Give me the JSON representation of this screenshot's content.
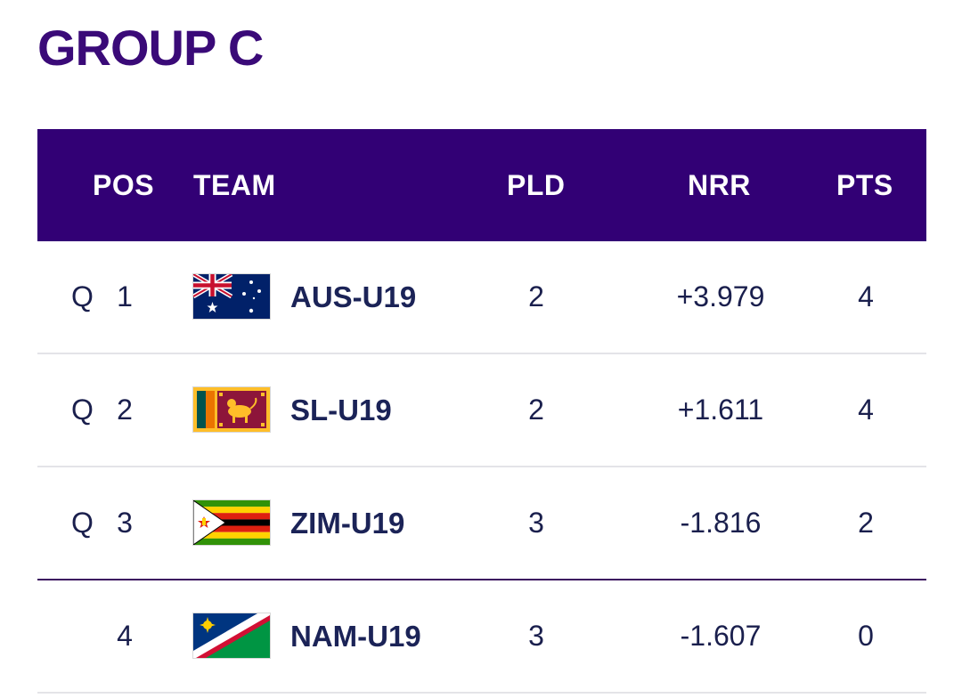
{
  "title": "GROUP C",
  "columns": {
    "pos": "POS",
    "team": "TEAM",
    "pld": "PLD",
    "nrr": "NRR",
    "pts": "PTS"
  },
  "rows": [
    {
      "qualified": "Q",
      "pos": "1",
      "flag": "australia-flag",
      "team": "AUS-U19",
      "pld": "2",
      "nrr": "+3.979",
      "pts": "4"
    },
    {
      "qualified": "Q",
      "pos": "2",
      "flag": "sri-lanka-flag",
      "team": "SL-U19",
      "pld": "2",
      "nrr": "+1.611",
      "pts": "4"
    },
    {
      "qualified": "Q",
      "pos": "3",
      "flag": "zimbabwe-flag",
      "team": "ZIM-U19",
      "pld": "3",
      "nrr": "-1.816",
      "pts": "2"
    },
    {
      "qualified": "",
      "pos": "4",
      "flag": "namibia-flag",
      "team": "NAM-U19",
      "pld": "3",
      "nrr": "-1.607",
      "pts": "0"
    }
  ],
  "colors": {
    "header_bg": "#320075",
    "title": "#3a0a78",
    "qualification_line": "#3b1460"
  }
}
